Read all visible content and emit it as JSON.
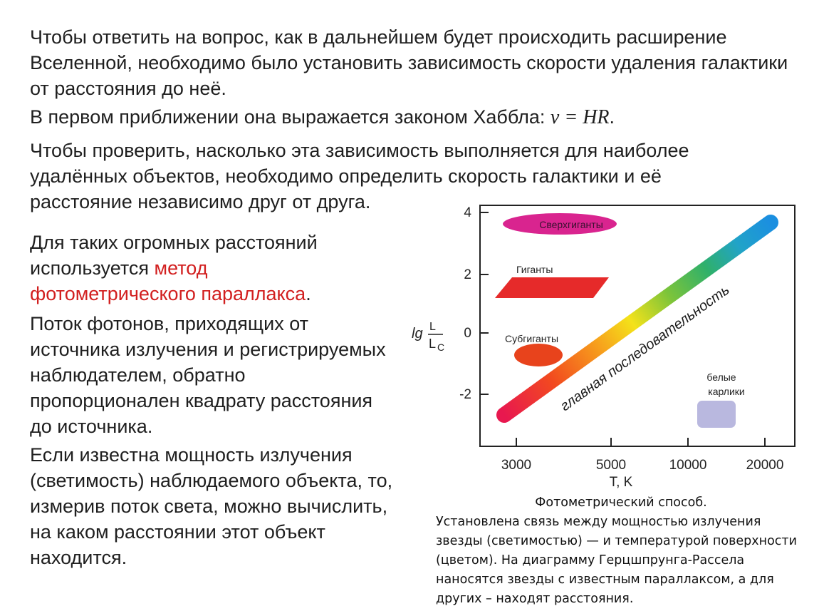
{
  "text": {
    "p1": "Чтобы ответить на вопрос, как в дальнейшем будет происходить расширение Вселенной, необходимо было установить зависимость скорости удаления галактики от расстояния до неё.",
    "p2_text": "В первом приближении она выражается законом Хаббла: ",
    "p2_formula": "v = HR",
    "p2_end": ".",
    "p3": "Чтобы проверить, насколько эта зависимость выполняется для наиболее удалённых объектов, необходимо определить скорость галактики и её расстояние независимо друг от друга.",
    "p4_text": "Для таких огромных расстояний используется ",
    "p4_highlight": "метод фотометрического параллакса",
    "p4_end": ".",
    "p5": "Поток фотонов, приходящих от источника излучения и регистрируемых наблюдателем, обратно пропорционален квадрату расстояния до источника.",
    "p6": "Если известна мощность излучения (светимость) наблюдаемого объекта, то, измерив поток света, можно вычислить, на каком расстоянии этот объект находится."
  },
  "diagram": {
    "y_axis_label": {
      "prefix": "lg",
      "numerator": "L",
      "denominator": "L",
      "subscript": "C"
    },
    "x_axis_label": "T, K",
    "y_ticks": [
      "4",
      "2",
      "0",
      "-2"
    ],
    "x_ticks": [
      "3000",
      "5000",
      "10000",
      "20000"
    ],
    "regions": {
      "supergiants": "Сверхгиганты",
      "giants": "Гиганты",
      "subgiants": "Субгиганты",
      "white_dwarfs_line1": "белые",
      "white_dwarfs_line2": "карлики",
      "main_sequence": "главная последовательность"
    },
    "colors": {
      "supergiants": "#d9248f",
      "giants": "#e62a2a",
      "subgiants": "#e8431c",
      "white_dwarfs": "#b9b8df",
      "main_sequence": [
        "#e8184f",
        "#f24a1f",
        "#f7a21c",
        "#f4e21a",
        "#7cc43a",
        "#2fb06b",
        "#21a3c8",
        "#1b8fe0"
      ]
    }
  },
  "caption": {
    "title": "Фотометрический способ.",
    "body": "Установлена связь между мощностью излучения звезды (светимостью) — и температурой поверхности (цветом). На диаграмму Герцшпрунга-Рассела наносятся звезды с известным параллаксом, а для других – находят расстояния."
  }
}
